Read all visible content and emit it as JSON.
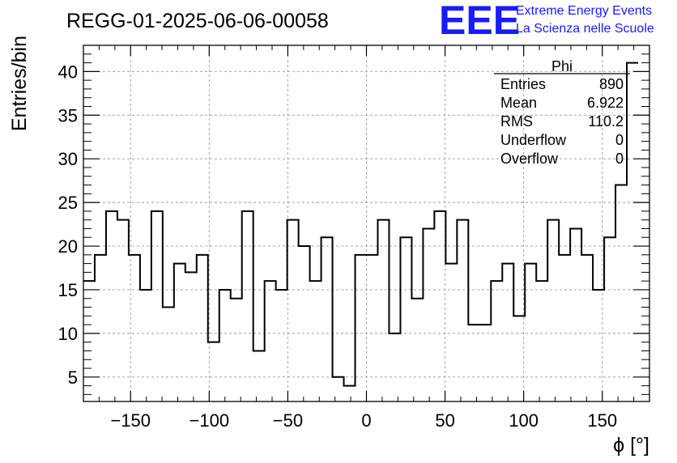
{
  "chart_data": {
    "type": "histogram",
    "title": "REGG-01-2025-06-06-00058",
    "xlabel": "ϕ [°]",
    "ylabel": "Entries/bin",
    "xlim": [
      -180,
      180
    ],
    "ylim": [
      2.2,
      43.0
    ],
    "bin_width": 7.2,
    "grid": true,
    "x_ticks": [
      -150,
      -100,
      -50,
      0,
      50,
      100,
      150
    ],
    "x_tick_labels": [
      "−150",
      "−100",
      "−50",
      "0",
      "50",
      "100",
      "150"
    ],
    "y_ticks": [
      5,
      10,
      15,
      20,
      25,
      30,
      35,
      40
    ],
    "y_tick_labels": [
      "5",
      "10",
      "15",
      "20",
      "25",
      "30",
      "35",
      "40"
    ],
    "counts": [
      16,
      19,
      24,
      23,
      19,
      15,
      24,
      13,
      18,
      17,
      19,
      9,
      15,
      14,
      24,
      8,
      16,
      15,
      23,
      20,
      16,
      21,
      5,
      4,
      19,
      19,
      23,
      10,
      21,
      14,
      22,
      24,
      18,
      23,
      11,
      11,
      16,
      18,
      12,
      18,
      16,
      23,
      19,
      22,
      19,
      15,
      21,
      27,
      41
    ],
    "series_color": "#000000"
  },
  "stats_box": {
    "title": "Phi",
    "rows": [
      {
        "label": "Entries",
        "value": "890"
      },
      {
        "label": "Mean",
        "value": "6.922"
      },
      {
        "label": "RMS",
        "value": "110.2"
      },
      {
        "label": "Underflow",
        "value": "0"
      },
      {
        "label": "Overflow",
        "value": "0"
      }
    ]
  },
  "logo": {
    "text": "EEE",
    "line1": "Extreme Energy Events",
    "line2": "La Scienza nelle Scuole",
    "color": "#1a1aff"
  }
}
